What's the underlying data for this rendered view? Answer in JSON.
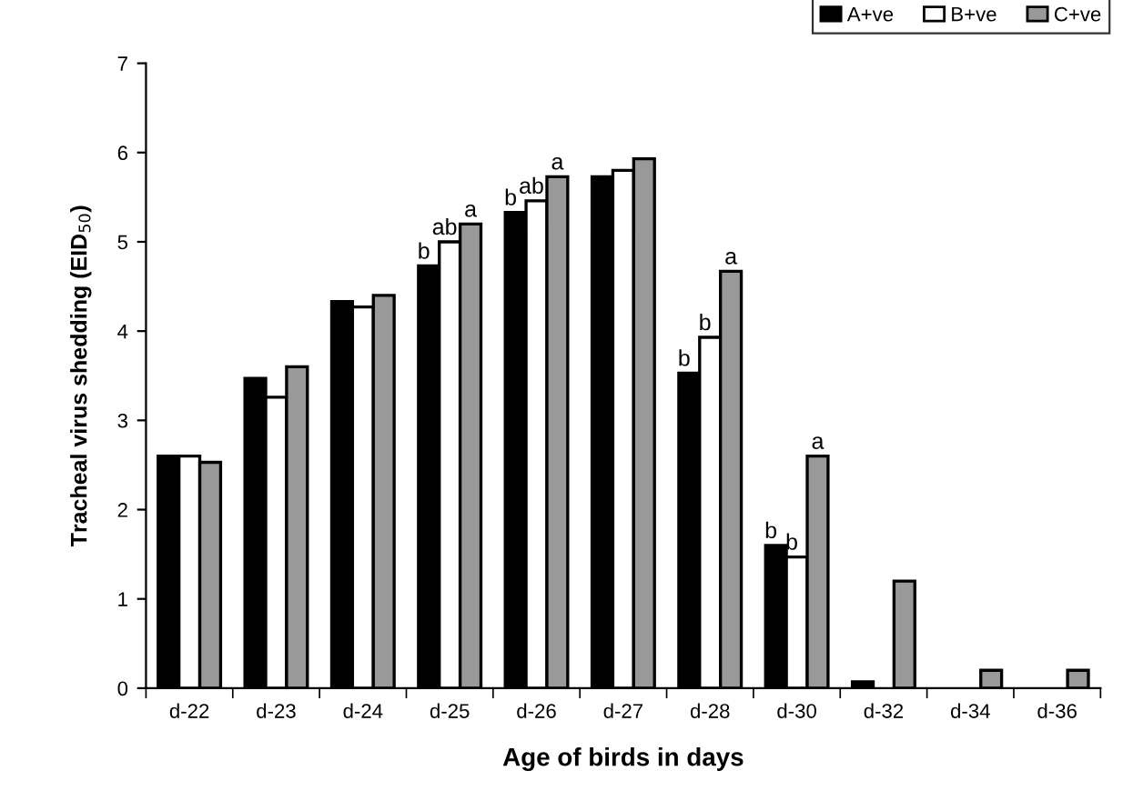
{
  "chart_data": {
    "type": "bar",
    "xlabel": "Age of birds in days",
    "ylabel": "Tracheal virus shedding (EID$_{50}$)",
    "categories": [
      "d-22",
      "d-23",
      "d-24",
      "d-25",
      "d-26",
      "d-27",
      "d-28",
      "d-30",
      "d-32",
      "d-34",
      "d-36"
    ],
    "series": [
      {
        "name": "A+ve",
        "color": "#000000",
        "values": [
          2.6,
          3.47,
          4.33,
          4.73,
          5.33,
          5.73,
          3.53,
          1.6,
          0.07,
          0,
          0
        ],
        "value_labels": [
          null,
          null,
          null,
          "b",
          "b",
          null,
          "b",
          "b",
          null,
          null,
          null
        ]
      },
      {
        "name": "B+ve",
        "color": "#ffffff",
        "values": [
          2.6,
          3.26,
          4.27,
          5.0,
          5.46,
          5.8,
          3.93,
          1.47,
          0,
          0,
          0
        ],
        "value_labels": [
          null,
          null,
          null,
          "ab",
          "ab",
          null,
          "b",
          "b",
          null,
          null,
          null
        ]
      },
      {
        "name": "C+ve",
        "color": "#999999",
        "values": [
          2.53,
          3.6,
          4.4,
          5.2,
          5.73,
          5.93,
          4.67,
          2.6,
          1.2,
          0.2,
          0.2
        ],
        "value_labels": [
          null,
          null,
          null,
          "a",
          "a",
          null,
          "a",
          "a",
          null,
          null,
          null
        ]
      }
    ],
    "ylim": [
      0,
      7
    ],
    "yticks": [
      0,
      1,
      2,
      3,
      4,
      5,
      6,
      7
    ],
    "grid": false,
    "legend": "top right"
  }
}
